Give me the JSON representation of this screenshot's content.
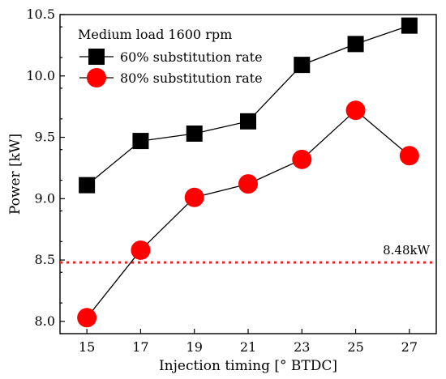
{
  "chart_data": {
    "type": "line",
    "title": "",
    "xlabel": "Injection timing [° BTDC]",
    "ylabel": "Power [kW]",
    "x": [
      15,
      17,
      19,
      21,
      23,
      25,
      27
    ],
    "x_ticks": [
      15,
      17,
      19,
      21,
      23,
      25,
      27
    ],
    "y_ticks": [
      "8.0",
      "8.5",
      "9.0",
      "9.5",
      "10.0",
      "10.5"
    ],
    "xlim": [
      14,
      28
    ],
    "ylim": [
      7.9,
      10.5
    ],
    "legend": {
      "heading": "Medium load 1600 rpm",
      "placement": "top-left"
    },
    "series": [
      {
        "name": "60% substitution rate",
        "marker": "square",
        "color": "#000000",
        "values": [
          9.11,
          9.47,
          9.53,
          9.63,
          10.09,
          10.26,
          10.41
        ]
      },
      {
        "name": "80% substitution rate",
        "marker": "circle",
        "color": "#ff0000",
        "values": [
          8.03,
          8.58,
          9.01,
          9.12,
          9.32,
          9.72,
          9.35
        ]
      }
    ],
    "reference_line": {
      "value": 8.48,
      "label": "8.48kW",
      "color": "#e8262a",
      "style": "dotted"
    }
  }
}
